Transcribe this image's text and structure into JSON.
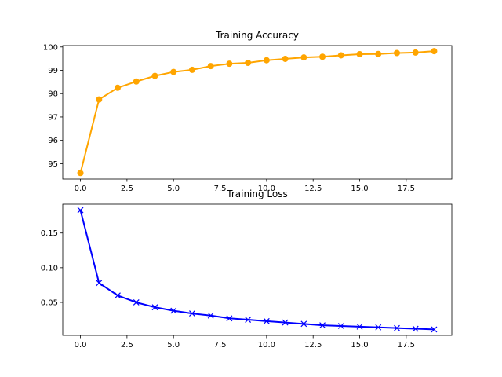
{
  "chart_data": [
    {
      "type": "line",
      "title": "Training Accuracy",
      "xlabel": "",
      "ylabel": "",
      "x": [
        0,
        1,
        2,
        3,
        4,
        5,
        6,
        7,
        8,
        9,
        10,
        11,
        12,
        13,
        14,
        15,
        16,
        17,
        18,
        19
      ],
      "series": [
        {
          "values": [
            94.6,
            97.75,
            98.25,
            98.52,
            98.76,
            98.93,
            99.02,
            99.18,
            99.28,
            99.32,
            99.43,
            99.49,
            99.55,
            99.58,
            99.64,
            99.69,
            99.7,
            99.74,
            99.76,
            99.82
          ],
          "color": "#FFA500",
          "marker": "circle"
        }
      ],
      "xticks": [
        0.0,
        2.5,
        5.0,
        7.5,
        10.0,
        12.5,
        15.0,
        17.5
      ],
      "xtick_labels": [
        "0.0",
        "2.5",
        "5.0",
        "7.5",
        "10.0",
        "12.5",
        "15.0",
        "17.5"
      ],
      "yticks": [
        95,
        96,
        97,
        98,
        99,
        100
      ],
      "ytick_labels": [
        "95",
        "96",
        "97",
        "98",
        "99",
        "100"
      ],
      "xlim": [
        -0.95,
        19.95
      ],
      "ylim": [
        94.34,
        100.06
      ],
      "grid": false
    },
    {
      "type": "line",
      "title": "Training Loss",
      "xlabel": "",
      "ylabel": "",
      "x": [
        0,
        1,
        2,
        3,
        4,
        5,
        6,
        7,
        8,
        9,
        10,
        11,
        12,
        13,
        14,
        15,
        16,
        17,
        18,
        19
      ],
      "series": [
        {
          "values": [
            0.183,
            0.078,
            0.06,
            0.05,
            0.043,
            0.038,
            0.034,
            0.031,
            0.027,
            0.025,
            0.023,
            0.021,
            0.019,
            0.017,
            0.016,
            0.015,
            0.014,
            0.013,
            0.012,
            0.011
          ],
          "color": "#0000FF",
          "marker": "x"
        }
      ],
      "xticks": [
        0.0,
        2.5,
        5.0,
        7.5,
        10.0,
        12.5,
        15.0,
        17.5
      ],
      "xtick_labels": [
        "0.0",
        "2.5",
        "5.0",
        "7.5",
        "10.0",
        "12.5",
        "15.0",
        "17.5"
      ],
      "yticks": [
        0.05,
        0.1,
        0.15
      ],
      "ytick_labels": [
        "0.05",
        "0.10",
        "0.15"
      ],
      "xlim": [
        -0.95,
        19.95
      ],
      "ylim": [
        0.0024,
        0.1916
      ],
      "grid": false
    }
  ]
}
